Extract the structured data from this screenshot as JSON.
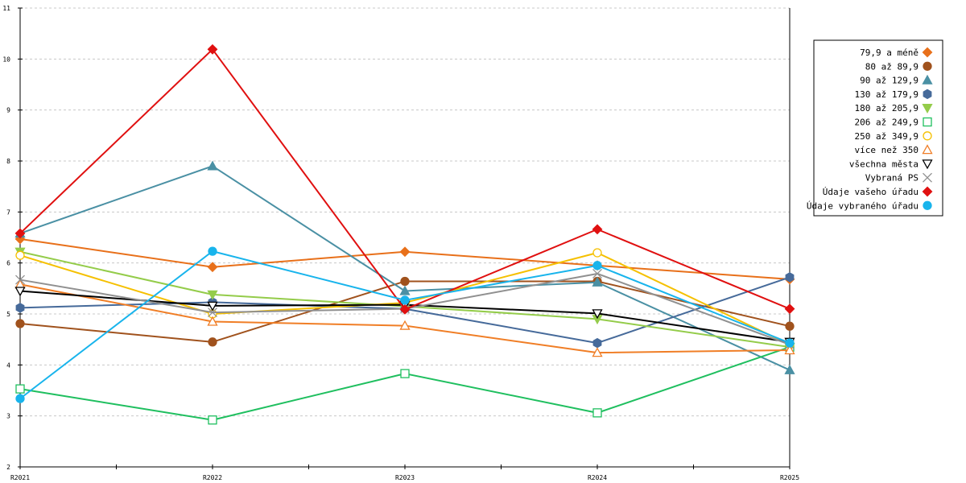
{
  "chart_data": {
    "type": "line",
    "categories": [
      "R2021",
      "R2022",
      "R2023",
      "R2024",
      "R2025"
    ],
    "ylim": [
      2,
      11
    ],
    "yticks": [
      2,
      3,
      4,
      5,
      6,
      7,
      8,
      9,
      10,
      11
    ],
    "grid": true,
    "legend_position": "top-right",
    "series": [
      {
        "name": "79,9 a méně",
        "color": "#e8701a",
        "marker": "diamond",
        "filled": true,
        "values": [
          6.47,
          5.92,
          6.22,
          5.95,
          5.68
        ]
      },
      {
        "name": "80 až 89,9",
        "color": "#a0521d",
        "marker": "circle",
        "filled": true,
        "values": [
          4.81,
          4.45,
          5.64,
          5.64,
          4.76
        ]
      },
      {
        "name": "90 až 129,9",
        "color": "#4a90a4",
        "marker": "triangle",
        "filled": true,
        "values": [
          6.58,
          7.9,
          5.45,
          5.62,
          3.9
        ]
      },
      {
        "name": "130 až 179,9",
        "color": "#466a9a",
        "marker": "pentagon",
        "filled": true,
        "values": [
          5.12,
          5.23,
          5.1,
          4.43,
          5.72
        ]
      },
      {
        "name": "180 až 205,9",
        "color": "#94cc4a",
        "marker": "triangle-down",
        "filled": true,
        "values": [
          6.22,
          5.38,
          5.15,
          4.9,
          4.35
        ]
      },
      {
        "name": "206 až 249,9",
        "color": "#1fbf5f",
        "marker": "square",
        "filled": false,
        "values": [
          3.53,
          2.92,
          3.83,
          3.06,
          4.35
        ]
      },
      {
        "name": "250 až 349,9",
        "color": "#f5c000",
        "marker": "circle",
        "filled": false,
        "values": [
          6.15,
          5.0,
          5.22,
          6.2,
          4.4
        ]
      },
      {
        "name": "více než 350",
        "color": "#f07e26",
        "marker": "triangle",
        "filled": false,
        "values": [
          5.58,
          4.85,
          4.77,
          4.24,
          4.29
        ]
      },
      {
        "name": "všechna města",
        "color": "#000000",
        "marker": "triangle-down",
        "filled": false,
        "values": [
          5.45,
          5.16,
          5.18,
          5.01,
          4.45
        ]
      },
      {
        "name": "Vybraná PS",
        "color": "#909090",
        "marker": "x",
        "filled": false,
        "values": [
          5.67,
          5.03,
          5.1,
          5.79,
          4.4
        ]
      },
      {
        "name": "Údaje vašeho úřadu",
        "color": "#e01010",
        "marker": "diamond",
        "filled": true,
        "values": [
          6.58,
          10.19,
          5.09,
          6.66,
          5.1
        ]
      },
      {
        "name": "Údaje vybraného úřadu",
        "color": "#18b4ec",
        "marker": "circle",
        "filled": true,
        "values": [
          3.34,
          6.23,
          5.27,
          5.95,
          4.43
        ]
      }
    ]
  }
}
